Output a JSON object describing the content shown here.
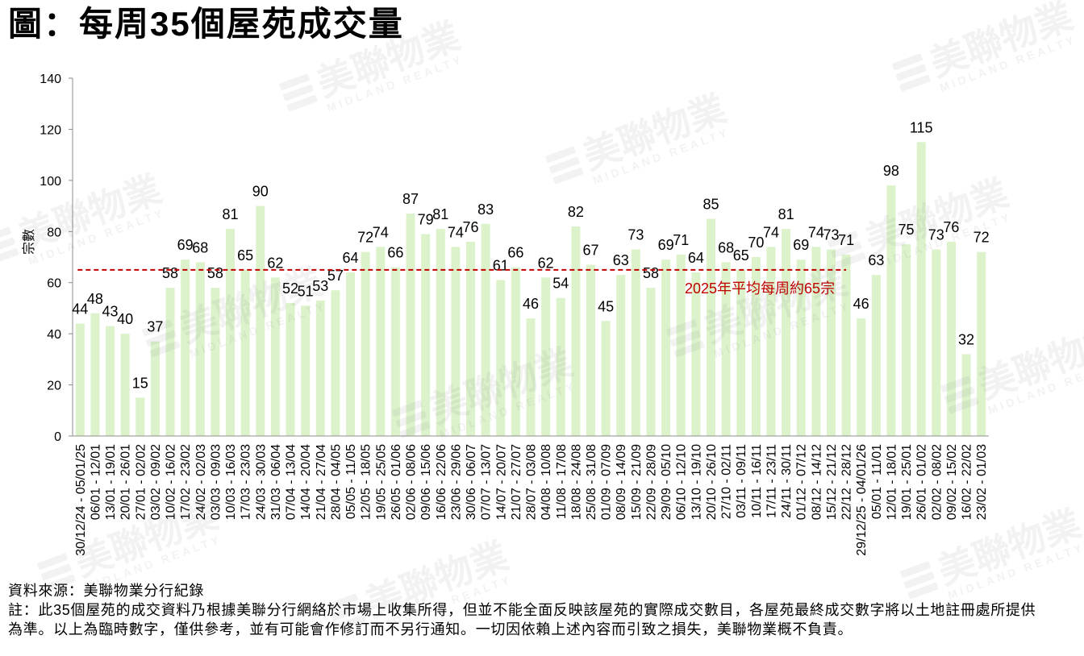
{
  "chart_data": {
    "type": "bar",
    "title": "圖：每周35個屋苑成交量",
    "xlabel": "",
    "ylabel": "宗數",
    "ylim": [
      0,
      140
    ],
    "yticks": [
      0,
      20,
      40,
      60,
      80,
      100,
      120,
      140
    ],
    "grid": false,
    "legend": "none",
    "bar_color": "#dcf2cb",
    "data_labels": true,
    "categories": [
      "30/12/24 - 05/01/25",
      "06/01 - 12/01",
      "13/01 - 19/01",
      "20/01 - 26/01",
      "27/01 - 02/02",
      "03/02 - 09/02",
      "10/02 - 16/02",
      "17/02 - 23/02",
      "24/02 - 02/03",
      "03/03 - 09/03",
      "10/03 - 16/03",
      "17/03 - 23/03",
      "24/03 - 30/03",
      "31/03 - 06/04",
      "07/04 - 13/04",
      "14/04 - 20/04",
      "21/04 - 27/04",
      "28/04 - 04/05",
      "05/05 - 11/05",
      "12/05 - 18/05",
      "19/05 - 25/05",
      "26/05 - 01/06",
      "02/06 - 08/06",
      "09/06 - 15/06",
      "16/06 - 22/06",
      "23/06 - 29/06",
      "30/06 - 06/07",
      "07/07 - 13/07",
      "14/07 - 20/07",
      "21/07 - 27/07",
      "28/07 - 03/08",
      "04/08 - 10/08",
      "11/08 - 17/08",
      "18/08 - 24/08",
      "25/08 - 31/08",
      "01/09 - 07/09",
      "08/09 - 14/09",
      "15/09 - 21/09",
      "22/09 - 28/09",
      "29/09 - 05/10",
      "06/10 - 12/10",
      "13/10 - 19/10",
      "20/10 - 26/10",
      "27/10 - 02/11",
      "03/11 - 09/11",
      "10/11 - 16/11",
      "17/11 - 23/11",
      "24/11 - 30/11",
      "01/12 - 07/12",
      "08/12 - 14/12",
      "15/12 - 21/12",
      "22/12 - 28/12",
      "29/12/25 - 04/01/26",
      "05/01 - 11/01",
      "12/01 - 18/01",
      "19/01 - 25/01",
      "26/01 - 01/02",
      "02/02 - 08/02",
      "09/02 - 15/02",
      "16/02 - 22/02",
      "23/02 - 01/03"
    ],
    "values": [
      44,
      48,
      43,
      40,
      15,
      37,
      58,
      69,
      68,
      58,
      81,
      65,
      90,
      62,
      52,
      51,
      53,
      57,
      64,
      72,
      74,
      66,
      87,
      79,
      81,
      74,
      76,
      83,
      61,
      66,
      46,
      62,
      54,
      82,
      67,
      45,
      63,
      73,
      58,
      69,
      71,
      64,
      85,
      68,
      65,
      70,
      74,
      81,
      69,
      74,
      73,
      71,
      46,
      63,
      98,
      75,
      115,
      73,
      76,
      32,
      72
    ],
    "reference_line": {
      "value": 65,
      "label": "2025年平均每周約65宗",
      "span": [
        "30/12/24 - 05/01/25",
        "22/12 - 28/12"
      ],
      "color": "#c00000",
      "style": "dashed"
    }
  },
  "footer": {
    "source": "資料來源：美聯物業分行紀錄",
    "note_lines": [
      "註：此35個屋苑的成交資料乃根據美聯分行網絡於市場上收集所得，但並不能全面反映該屋苑的實際成交數目，各屋苑最終成交數字將以土地註冊處所提供",
      "為準。以上為臨時數字，僅供參考，並有可能會作修訂而不另行通知。一切因依賴上述內容而引致之損失，美聯物業概不負責。"
    ]
  },
  "watermark": {
    "brand": "美聯物業",
    "brand_en": "MIDLAND REALTY"
  }
}
